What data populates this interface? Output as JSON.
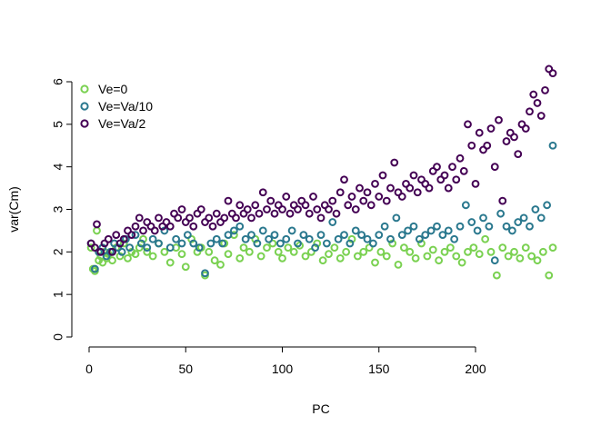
{
  "chart_data": {
    "type": "scatter",
    "xlabel": "PC",
    "ylabel": "var(Cm)",
    "xlim": [
      0,
      240
    ],
    "ylim": [
      0,
      6
    ],
    "xticks": [
      0,
      50,
      100,
      150,
      200
    ],
    "yticks": [
      0,
      1,
      2,
      3,
      4,
      5,
      6
    ],
    "legend_position": "top-left",
    "series": [
      {
        "name": "Ve=0",
        "color": "#7AD151",
        "x": [
          1,
          2,
          3,
          4,
          5,
          6,
          7,
          8,
          9,
          10,
          12,
          14,
          16,
          18,
          20,
          22,
          24,
          26,
          28,
          30,
          33,
          36,
          39,
          42,
          45,
          48,
          50,
          53,
          56,
          58,
          60,
          62,
          65,
          68,
          70,
          72,
          75,
          78,
          80,
          83,
          86,
          89,
          92,
          95,
          98,
          100,
          103,
          106,
          109,
          112,
          115,
          118,
          121,
          124,
          127,
          130,
          133,
          136,
          139,
          142,
          145,
          148,
          151,
          154,
          157,
          160,
          163,
          166,
          169,
          172,
          175,
          178,
          181,
          184,
          187,
          190,
          193,
          196,
          199,
          202,
          205,
          208,
          211,
          214,
          217,
          220,
          223,
          226,
          229,
          232,
          235,
          238,
          240
        ],
        "values": [
          2.1,
          1.6,
          1.55,
          2.5,
          1.8,
          1.9,
          1.75,
          2.0,
          1.85,
          1.95,
          1.8,
          2.1,
          1.9,
          2.2,
          1.85,
          2.0,
          1.95,
          2.1,
          2.3,
          2.0,
          1.9,
          2.2,
          2.0,
          1.75,
          2.1,
          1.95,
          1.65,
          2.3,
          2.0,
          2.1,
          1.45,
          2.0,
          1.8,
          1.7,
          2.2,
          1.95,
          2.4,
          1.85,
          2.1,
          2.0,
          2.3,
          1.9,
          2.1,
          2.2,
          2.0,
          1.85,
          2.1,
          2.0,
          2.15,
          1.9,
          2.0,
          2.2,
          1.8,
          1.95,
          2.1,
          1.85,
          2.0,
          2.3,
          1.9,
          2.0,
          2.1,
          1.75,
          2.0,
          1.9,
          2.2,
          1.7,
          2.1,
          2.0,
          1.85,
          2.2,
          1.9,
          2.05,
          1.8,
          2.0,
          2.1,
          1.9,
          1.75,
          2.0,
          2.1,
          1.95,
          2.3,
          2.0,
          1.45,
          2.1,
          1.9,
          2.0,
          1.85,
          2.1,
          1.9,
          1.8,
          2.0,
          1.45,
          2.1
        ]
      },
      {
        "name": "Ve=Va/10",
        "color": "#2A788E",
        "x": [
          1,
          3,
          5,
          7,
          9,
          11,
          13,
          15,
          17,
          19,
          21,
          24,
          27,
          30,
          33,
          36,
          39,
          42,
          45,
          48,
          51,
          54,
          57,
          60,
          63,
          66,
          69,
          72,
          75,
          78,
          81,
          84,
          87,
          90,
          93,
          96,
          99,
          102,
          105,
          108,
          111,
          114,
          117,
          120,
          123,
          126,
          129,
          132,
          135,
          138,
          141,
          144,
          147,
          150,
          153,
          156,
          159,
          162,
          165,
          168,
          171,
          174,
          177,
          180,
          183,
          186,
          189,
          192,
          195,
          198,
          201,
          204,
          207,
          210,
          213,
          216,
          219,
          222,
          225,
          228,
          231,
          234,
          237,
          240
        ],
        "values": [
          2.2,
          1.6,
          2.0,
          2.1,
          1.9,
          2.0,
          2.2,
          2.1,
          2.0,
          2.3,
          2.1,
          2.4,
          2.2,
          2.1,
          2.3,
          2.2,
          2.5,
          2.1,
          2.3,
          2.2,
          2.4,
          2.2,
          2.1,
          1.5,
          2.2,
          2.3,
          2.2,
          2.4,
          2.5,
          2.6,
          2.3,
          2.4,
          2.2,
          2.5,
          2.3,
          2.4,
          2.2,
          2.3,
          2.5,
          2.2,
          2.4,
          2.3,
          2.1,
          2.4,
          2.2,
          2.7,
          2.3,
          2.4,
          2.2,
          2.5,
          2.4,
          2.3,
          2.2,
          2.4,
          2.6,
          2.3,
          2.8,
          2.4,
          2.5,
          2.6,
          2.3,
          2.4,
          2.5,
          2.6,
          2.4,
          2.5,
          2.3,
          2.6,
          3.1,
          2.7,
          2.5,
          2.8,
          2.6,
          1.8,
          2.9,
          2.6,
          2.5,
          2.7,
          2.8,
          2.6,
          3.0,
          2.8,
          3.1,
          4.5
        ]
      },
      {
        "name": "Ve=Va/2",
        "color": "#440154",
        "x": [
          1,
          3,
          4,
          6,
          8,
          10,
          12,
          14,
          16,
          18,
          20,
          22,
          24,
          26,
          28,
          30,
          32,
          34,
          36,
          38,
          40,
          42,
          44,
          46,
          48,
          50,
          52,
          54,
          56,
          58,
          60,
          62,
          64,
          66,
          68,
          70,
          72,
          74,
          76,
          78,
          80,
          82,
          84,
          86,
          88,
          90,
          92,
          94,
          96,
          98,
          100,
          102,
          104,
          106,
          108,
          110,
          112,
          114,
          116,
          118,
          120,
          122,
          124,
          126,
          128,
          130,
          132,
          134,
          136,
          138,
          140,
          142,
          144,
          146,
          148,
          150,
          152,
          154,
          156,
          158,
          160,
          162,
          164,
          166,
          168,
          170,
          172,
          174,
          176,
          178,
          180,
          182,
          184,
          186,
          188,
          190,
          192,
          194,
          196,
          198,
          200,
          202,
          204,
          206,
          208,
          210,
          212,
          214,
          216,
          218,
          220,
          222,
          224,
          226,
          228,
          230,
          232,
          234,
          236,
          238,
          240
        ],
        "values": [
          2.2,
          2.1,
          2.65,
          2.0,
          2.2,
          2.3,
          2.0,
          2.4,
          2.2,
          2.3,
          2.5,
          2.4,
          2.6,
          2.8,
          2.5,
          2.7,
          2.6,
          2.5,
          2.8,
          2.6,
          2.7,
          2.6,
          2.9,
          2.8,
          3.0,
          2.7,
          2.8,
          2.6,
          2.9,
          3.0,
          2.7,
          2.8,
          2.6,
          2.9,
          2.7,
          2.8,
          3.2,
          2.9,
          2.8,
          3.1,
          2.9,
          3.0,
          2.8,
          3.1,
          2.9,
          3.4,
          3.0,
          3.2,
          2.9,
          3.1,
          3.0,
          3.3,
          2.9,
          3.1,
          3.0,
          3.2,
          3.1,
          2.9,
          3.3,
          3.0,
          2.8,
          3.1,
          3.0,
          3.2,
          2.9,
          3.4,
          3.7,
          3.1,
          3.3,
          3.0,
          3.5,
          3.2,
          3.4,
          3.1,
          3.6,
          3.3,
          3.8,
          3.2,
          3.5,
          4.1,
          3.4,
          3.3,
          3.6,
          3.5,
          3.8,
          3.4,
          3.7,
          3.6,
          3.5,
          3.9,
          4.0,
          3.7,
          3.8,
          3.5,
          4.0,
          3.7,
          4.2,
          3.9,
          5.0,
          4.5,
          3.6,
          4.8,
          4.4,
          4.5,
          4.9,
          4.0,
          5.1,
          3.2,
          4.6,
          4.8,
          4.7,
          4.3,
          5.0,
          4.9,
          5.3,
          5.7,
          5.5,
          5.2,
          5.8,
          6.3,
          6.2
        ]
      }
    ]
  }
}
